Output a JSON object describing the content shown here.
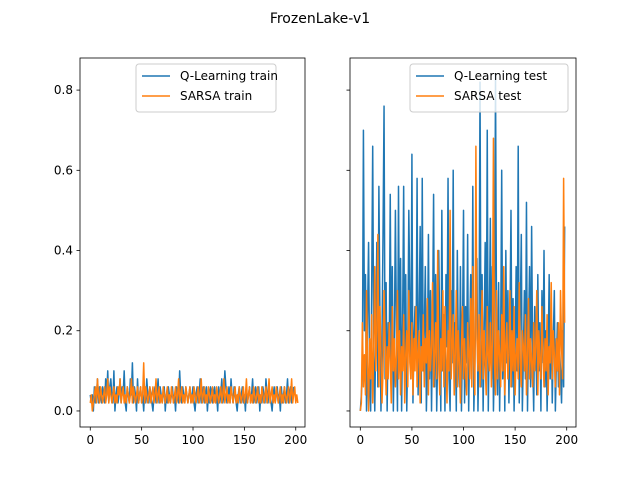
{
  "chart_data": {
    "suptitle": "FrozenLake-v1",
    "charts": [
      {
        "type": "line",
        "title": "",
        "xlabel": "",
        "ylabel": "",
        "xlim": [
          -10,
          209
        ],
        "ylim": [
          -0.04,
          0.88
        ],
        "xticks": [
          0,
          50,
          100,
          150,
          200
        ],
        "yticks": [
          0.0,
          0.2,
          0.4,
          0.6,
          0.8
        ],
        "ytick_labels": [
          "0.0",
          "0.2",
          "0.4",
          "0.6",
          "0.8"
        ],
        "legend": "top-right",
        "series": [
          {
            "name": "Q-Learning train",
            "color": "#1f77b4",
            "values": [
              0.04,
              0.02,
              0.04,
              0.0,
              0.06,
              0.02,
              0.04,
              0.08,
              0.02,
              0.06,
              0.04,
              0.02,
              0.06,
              0.04,
              0.02,
              0.08,
              0.04,
              0.1,
              0.02,
              0.06,
              0.08,
              0.04,
              0.02,
              0.1,
              0.0,
              0.04,
              0.06,
              0.02,
              0.04,
              0.08,
              0.02,
              0.06,
              0.04,
              0.1,
              0.02,
              0.0,
              0.06,
              0.04,
              0.02,
              0.08,
              0.04,
              0.12,
              0.02,
              0.06,
              0.04,
              0.0,
              0.08,
              0.02,
              0.04,
              0.06,
              0.02,
              0.04,
              0.0,
              0.06,
              0.02,
              0.08,
              0.04,
              0.02,
              0.06,
              0.04,
              0.02,
              0.0,
              0.04,
              0.06,
              0.02,
              0.04,
              0.08,
              0.02,
              0.06,
              0.04,
              0.02,
              0.04,
              0.06,
              0.0,
              0.04,
              0.02,
              0.06,
              0.04,
              0.02,
              0.04,
              0.06,
              0.02,
              0.04,
              0.0,
              0.06,
              0.04,
              0.02,
              0.1,
              0.04,
              0.02,
              0.06,
              0.04,
              0.02,
              0.06,
              0.04,
              0.02,
              0.04,
              0.06,
              0.02,
              0.04,
              0.06,
              0.02,
              0.0,
              0.04,
              0.06,
              0.02,
              0.04,
              0.08,
              0.02,
              0.04,
              0.06,
              0.02,
              0.04,
              0.06,
              0.0,
              0.04,
              0.02,
              0.06,
              0.04,
              0.02,
              0.04,
              0.06,
              0.02,
              0.04,
              0.0,
              0.06,
              0.02,
              0.04,
              0.08,
              0.02,
              0.04,
              0.1,
              0.06,
              0.02,
              0.04,
              0.06,
              0.02,
              0.08,
              0.04,
              0.02,
              0.06,
              0.04,
              0.02,
              0.0,
              0.04,
              0.06,
              0.02,
              0.04,
              0.06,
              0.02,
              0.04,
              0.0,
              0.06,
              0.02,
              0.04,
              0.06,
              0.02,
              0.04,
              0.08,
              0.02,
              0.04,
              0.06,
              0.02,
              0.04,
              0.06,
              0.0,
              0.04,
              0.02,
              0.06,
              0.04,
              0.02,
              0.08,
              0.04,
              0.02,
              0.06,
              0.04,
              0.02,
              0.0,
              0.04,
              0.06,
              0.02,
              0.04,
              0.06,
              0.02,
              0.04,
              0.0,
              0.06,
              0.02,
              0.04,
              0.06,
              0.02,
              0.04,
              0.08,
              0.02,
              0.04,
              0.06,
              0.02,
              0.04,
              0.06
            ]
          },
          {
            "name": "SARSA train",
            "color": "#ff7f0e",
            "values": [
              0.02,
              0.04,
              0.0,
              0.02,
              0.04,
              0.06,
              0.02,
              0.08,
              0.04,
              0.02,
              0.06,
              0.04,
              0.02,
              0.04,
              0.06,
              0.02,
              0.04,
              0.08,
              0.02,
              0.06,
              0.04,
              0.02,
              0.04,
              0.06,
              0.02,
              0.04,
              0.02,
              0.06,
              0.04,
              0.08,
              0.02,
              0.04,
              0.06,
              0.02,
              0.04,
              0.02,
              0.06,
              0.04,
              0.02,
              0.04,
              0.08,
              0.02,
              0.06,
              0.04,
              0.02,
              0.04,
              0.06,
              0.02,
              0.04,
              0.06,
              0.02,
              0.04,
              0.12,
              0.02,
              0.06,
              0.04,
              0.02,
              0.04,
              0.06,
              0.02,
              0.04,
              0.06,
              0.02,
              0.04,
              0.08,
              0.02,
              0.04,
              0.06,
              0.02,
              0.04,
              0.02,
              0.06,
              0.04,
              0.02,
              0.04,
              0.06,
              0.02,
              0.04,
              0.02,
              0.06,
              0.04,
              0.02,
              0.04,
              0.06,
              0.02,
              0.04,
              0.08,
              0.02,
              0.04,
              0.06,
              0.02,
              0.04,
              0.02,
              0.06,
              0.04,
              0.02,
              0.04,
              0.06,
              0.02,
              0.04,
              0.02,
              0.06,
              0.04,
              0.02,
              0.04,
              0.06,
              0.02,
              0.04,
              0.08,
              0.02,
              0.04,
              0.06,
              0.02,
              0.04,
              0.02,
              0.06,
              0.04,
              0.02,
              0.04,
              0.06,
              0.02,
              0.04,
              0.02,
              0.06,
              0.04,
              0.02,
              0.04,
              0.06,
              0.02,
              0.04,
              0.08,
              0.02,
              0.04,
              0.06,
              0.02,
              0.04,
              0.02,
              0.06,
              0.04,
              0.02,
              0.04,
              0.06,
              0.02,
              0.04,
              0.02,
              0.06,
              0.04,
              0.02,
              0.04,
              0.06,
              0.02,
              0.04,
              0.08,
              0.02,
              0.04,
              0.06,
              0.02,
              0.04,
              0.02,
              0.06,
              0.04,
              0.02,
              0.04,
              0.06,
              0.02,
              0.04,
              0.02,
              0.06,
              0.04,
              0.02,
              0.04,
              0.06,
              0.02,
              0.04,
              0.08,
              0.02,
              0.04,
              0.06,
              0.02,
              0.04,
              0.02,
              0.06,
              0.04,
              0.02,
              0.04,
              0.06,
              0.02,
              0.04,
              0.02,
              0.06,
              0.04,
              0.02,
              0.04,
              0.06,
              0.02,
              0.04,
              0.08,
              0.02,
              0.04,
              0.06,
              0.02,
              0.04,
              0.02
            ]
          }
        ]
      },
      {
        "type": "line",
        "title": "",
        "xlabel": "",
        "ylabel": "",
        "xlim": [
          -10,
          209
        ],
        "ylim": [
          -0.04,
          0.88
        ],
        "xticks": [
          0,
          50,
          100,
          150,
          200
        ],
        "yticks": [
          0.0,
          0.2,
          0.4,
          0.6,
          0.8
        ],
        "ytick_labels": [
          "",
          "",
          "",
          "",
          ""
        ],
        "legend": "top-right",
        "series": [
          {
            "name": "Q-Learning test",
            "color": "#1f77b4",
            "values": [
              0.0,
              0.04,
              0.1,
              0.7,
              0.2,
              0.34,
              0.0,
              0.24,
              0.42,
              0.1,
              0.0,
              0.3,
              0.66,
              0.14,
              0.0,
              0.2,
              0.42,
              0.06,
              0.56,
              0.24,
              0.0,
              0.18,
              0.44,
              0.76,
              0.08,
              0.32,
              0.0,
              0.22,
              0.14,
              0.54,
              0.08,
              0.36,
              0.0,
              0.18,
              0.5,
              0.2,
              0.0,
              0.56,
              0.12,
              0.38,
              0.0,
              0.22,
              0.56,
              0.1,
              0.34,
              0.0,
              0.16,
              0.5,
              0.28,
              0.08,
              0.64,
              0.02,
              0.18,
              0.26,
              0.14,
              0.58,
              0.04,
              0.24,
              0.46,
              0.02,
              0.58,
              0.1,
              0.2,
              0.36,
              0.0,
              0.12,
              0.44,
              0.08,
              0.3,
              0.0,
              0.22,
              0.54,
              0.06,
              0.34,
              0.0,
              0.14,
              0.4,
              0.18,
              0.0,
              0.5,
              0.1,
              0.24,
              0.0,
              0.34,
              0.16,
              0.58,
              0.08,
              0.0,
              0.3,
              0.12,
              0.6,
              0.04,
              0.22,
              0.0,
              0.4,
              0.14,
              0.06,
              0.36,
              0.0,
              0.18,
              0.5,
              0.02,
              0.26,
              0.12,
              0.44,
              0.0,
              0.2,
              0.34,
              0.06,
              0.56,
              0.0,
              0.12,
              0.28,
              0.38,
              0.0,
              0.16,
              0.82,
              0.06,
              0.34,
              0.0,
              0.2,
              0.42,
              0.1,
              0.7,
              0.0,
              0.22,
              0.48,
              0.08,
              0.36,
              0.0,
              0.14,
              0.84,
              0.2,
              0.04,
              0.32,
              0.0,
              0.18,
              0.6,
              0.08,
              0.26,
              0.0,
              0.4,
              0.12,
              0.3,
              0.02,
              0.22,
              0.5,
              0.06,
              0.28,
              0.0,
              0.16,
              0.36,
              0.1,
              0.66,
              0.02,
              0.24,
              0.44,
              0.0,
              0.14,
              0.3,
              0.08,
              0.52,
              0.0,
              0.2,
              0.36,
              0.06,
              0.46,
              0.14,
              0.0,
              0.26,
              0.18,
              0.04,
              0.34,
              0.1,
              0.22,
              0.0,
              0.3,
              0.12,
              0.4,
              0.06,
              0.2,
              0.0,
              0.14,
              0.34,
              0.08,
              0.24,
              0.02,
              0.18,
              0.3,
              0.0,
              0.12,
              0.22,
              0.06,
              0.16,
              0.1,
              0.02,
              0.2,
              0.06,
              0.46
            ]
          },
          {
            "name": "SARSA test",
            "color": "#ff7f0e",
            "values": [
              0.0,
              0.02,
              0.22,
              0.06,
              0.14,
              0.04,
              0.3,
              0.12,
              0.0,
              0.18,
              0.08,
              0.24,
              0.02,
              0.16,
              0.36,
              0.1,
              0.2,
              0.44,
              0.06,
              0.26,
              0.14,
              0.02,
              0.1,
              0.3,
              0.18,
              0.04,
              0.16,
              0.08,
              0.22,
              0.12,
              0.02,
              0.26,
              0.1,
              0.18,
              0.06,
              0.14,
              0.3,
              0.08,
              0.2,
              0.04,
              0.16,
              0.1,
              0.24,
              0.02,
              0.14,
              0.2,
              0.06,
              0.3,
              0.12,
              0.08,
              0.22,
              0.04,
              0.18,
              0.1,
              0.26,
              0.06,
              0.14,
              0.2,
              0.02,
              0.16,
              0.1,
              0.24,
              0.06,
              0.18,
              0.12,
              0.28,
              0.04,
              0.2,
              0.1,
              0.16,
              0.32,
              0.06,
              0.14,
              0.22,
              0.08,
              0.4,
              0.12,
              0.04,
              0.18,
              0.1,
              0.3,
              0.06,
              0.26,
              0.14,
              0.02,
              0.2,
              0.1,
              0.5,
              0.08,
              0.16,
              0.24,
              0.04,
              0.14,
              0.3,
              0.06,
              0.2,
              0.12,
              0.02,
              0.16,
              0.26,
              0.08,
              0.18,
              0.1,
              0.04,
              0.22,
              0.14,
              0.08,
              0.28,
              0.06,
              0.36,
              0.12,
              0.04,
              0.66,
              0.18,
              0.1,
              0.24,
              0.06,
              0.16,
              0.3,
              0.08,
              0.2,
              0.12,
              0.04,
              0.26,
              0.14,
              0.1,
              0.22,
              0.06,
              0.18,
              0.68,
              0.12,
              0.04,
              0.3,
              0.08,
              0.2,
              0.14,
              0.06,
              0.24,
              0.1,
              0.36,
              0.04,
              0.16,
              0.22,
              0.08,
              0.14,
              0.3,
              0.06,
              0.2,
              0.1,
              0.26,
              0.04,
              0.14,
              0.18,
              0.08,
              0.32,
              0.12,
              0.06,
              0.2,
              0.16,
              0.1,
              0.24,
              0.04,
              0.14,
              0.28,
              0.08,
              0.18,
              0.12,
              0.06,
              0.22,
              0.1,
              0.16,
              0.3,
              0.04,
              0.2,
              0.12,
              0.08,
              0.26,
              0.14,
              0.06,
              0.18,
              0.1,
              0.24,
              0.04,
              0.16,
              0.12,
              0.32,
              0.08,
              0.2,
              0.14,
              0.06,
              0.18,
              0.1,
              0.22,
              0.04,
              0.3,
              0.16,
              0.08,
              0.58,
              0.22
            ]
          }
        ]
      }
    ]
  }
}
